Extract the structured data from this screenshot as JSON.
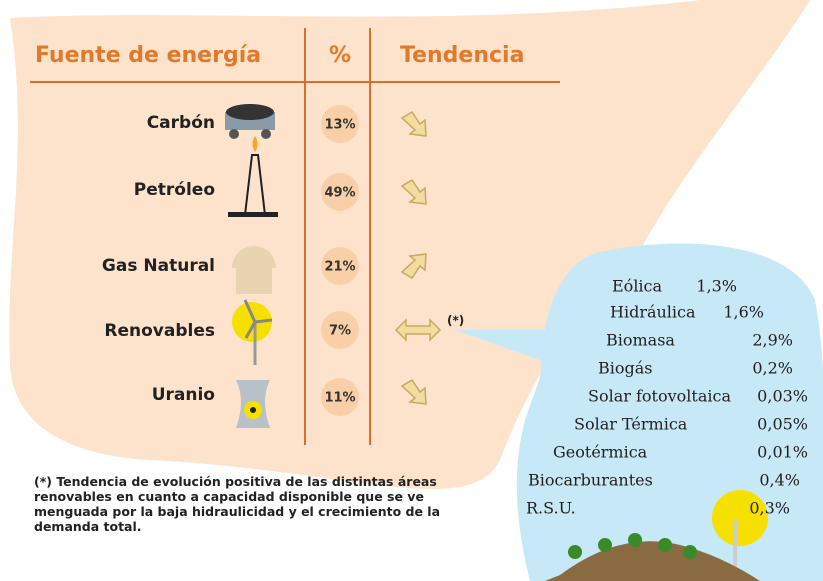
{
  "header": {
    "source": "Fuente de energía",
    "percent": "%",
    "trend": "Tendencia"
  },
  "rows": [
    {
      "name": "Carbón",
      "percent": "13%"
    },
    {
      "name": "Petróleo",
      "percent": "49%"
    },
    {
      "name": "Gas Natural",
      "percent": "21%"
    },
    {
      "name": "Renovables",
      "percent": "7%",
      "note": "(*)"
    },
    {
      "name": "Uranio",
      "percent": "11%"
    }
  ],
  "renewables": [
    {
      "name": "Eólica",
      "value": "1,3%"
    },
    {
      "name": "Hidráulica",
      "value": "1,6%"
    },
    {
      "name": "Biomasa",
      "value": "2,9%"
    },
    {
      "name": "Biogás",
      "value": "0,2%"
    },
    {
      "name": "Solar fotovoltaica",
      "value": "0,03%"
    },
    {
      "name": "Solar Térmica",
      "value": "0,05%"
    },
    {
      "name": "Geotérmica",
      "value": "0,01%"
    },
    {
      "name": "Biocarburantes",
      "value": "0,4%"
    },
    {
      "name": "R.S.U.",
      "value": "0,3%"
    }
  ],
  "footnote": "(*) Tendencia de evolución positiva de las distintas áreas renovables en cuanto a capacidad disponible que se ve menguada por la baja hidraulicidad y el crecimiento de la demanda total."
}
